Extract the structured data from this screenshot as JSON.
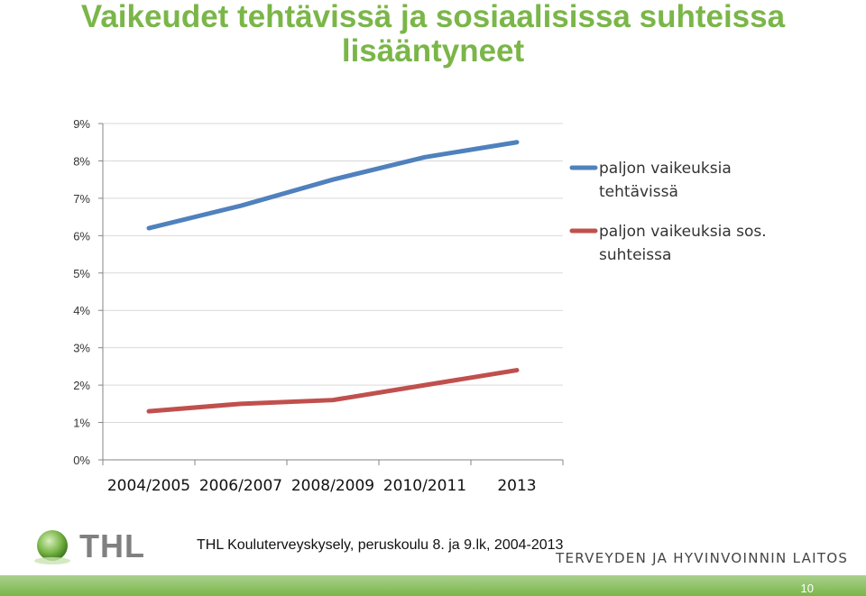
{
  "slide": {
    "title_line1": "Vaikeudet tehtävissä ja sosiaalisissa suhteissa",
    "title_line2": "lisääntyneet",
    "source": "THL Kouluterveyskysely, peruskoulu 8. ja 9.lk, 2004-2013",
    "org_name": "TERVEYDEN JA HYVINVOINNIN LAITOS",
    "logo_text": "THL",
    "page_number": "10",
    "accent_color": "#7ab648"
  },
  "chart_data": {
    "type": "line",
    "categories": [
      "2004/2005",
      "2006/2007",
      "2008/2009",
      "2010/2011",
      "2013"
    ],
    "ylim": [
      0,
      9
    ],
    "yticks": [
      "0%",
      "1%",
      "2%",
      "3%",
      "4%",
      "5%",
      "6%",
      "7%",
      "8%",
      "9%"
    ],
    "grid": true,
    "legend_position": "right",
    "series": [
      {
        "name": "paljon vaikeuksia tehtävissä",
        "legend_lines": [
          "paljon vaikeuksia",
          "tehtävissä"
        ],
        "color": "#4f81bd",
        "values": [
          6.2,
          6.8,
          7.5,
          8.1,
          8.5
        ]
      },
      {
        "name": "paljon vaikeuksia sos. suhteissa",
        "legend_lines": [
          "paljon vaikeuksia sos.",
          "suhteissa"
        ],
        "color": "#c0504d",
        "values": [
          1.3,
          1.5,
          1.6,
          2.0,
          2.4
        ]
      }
    ]
  }
}
